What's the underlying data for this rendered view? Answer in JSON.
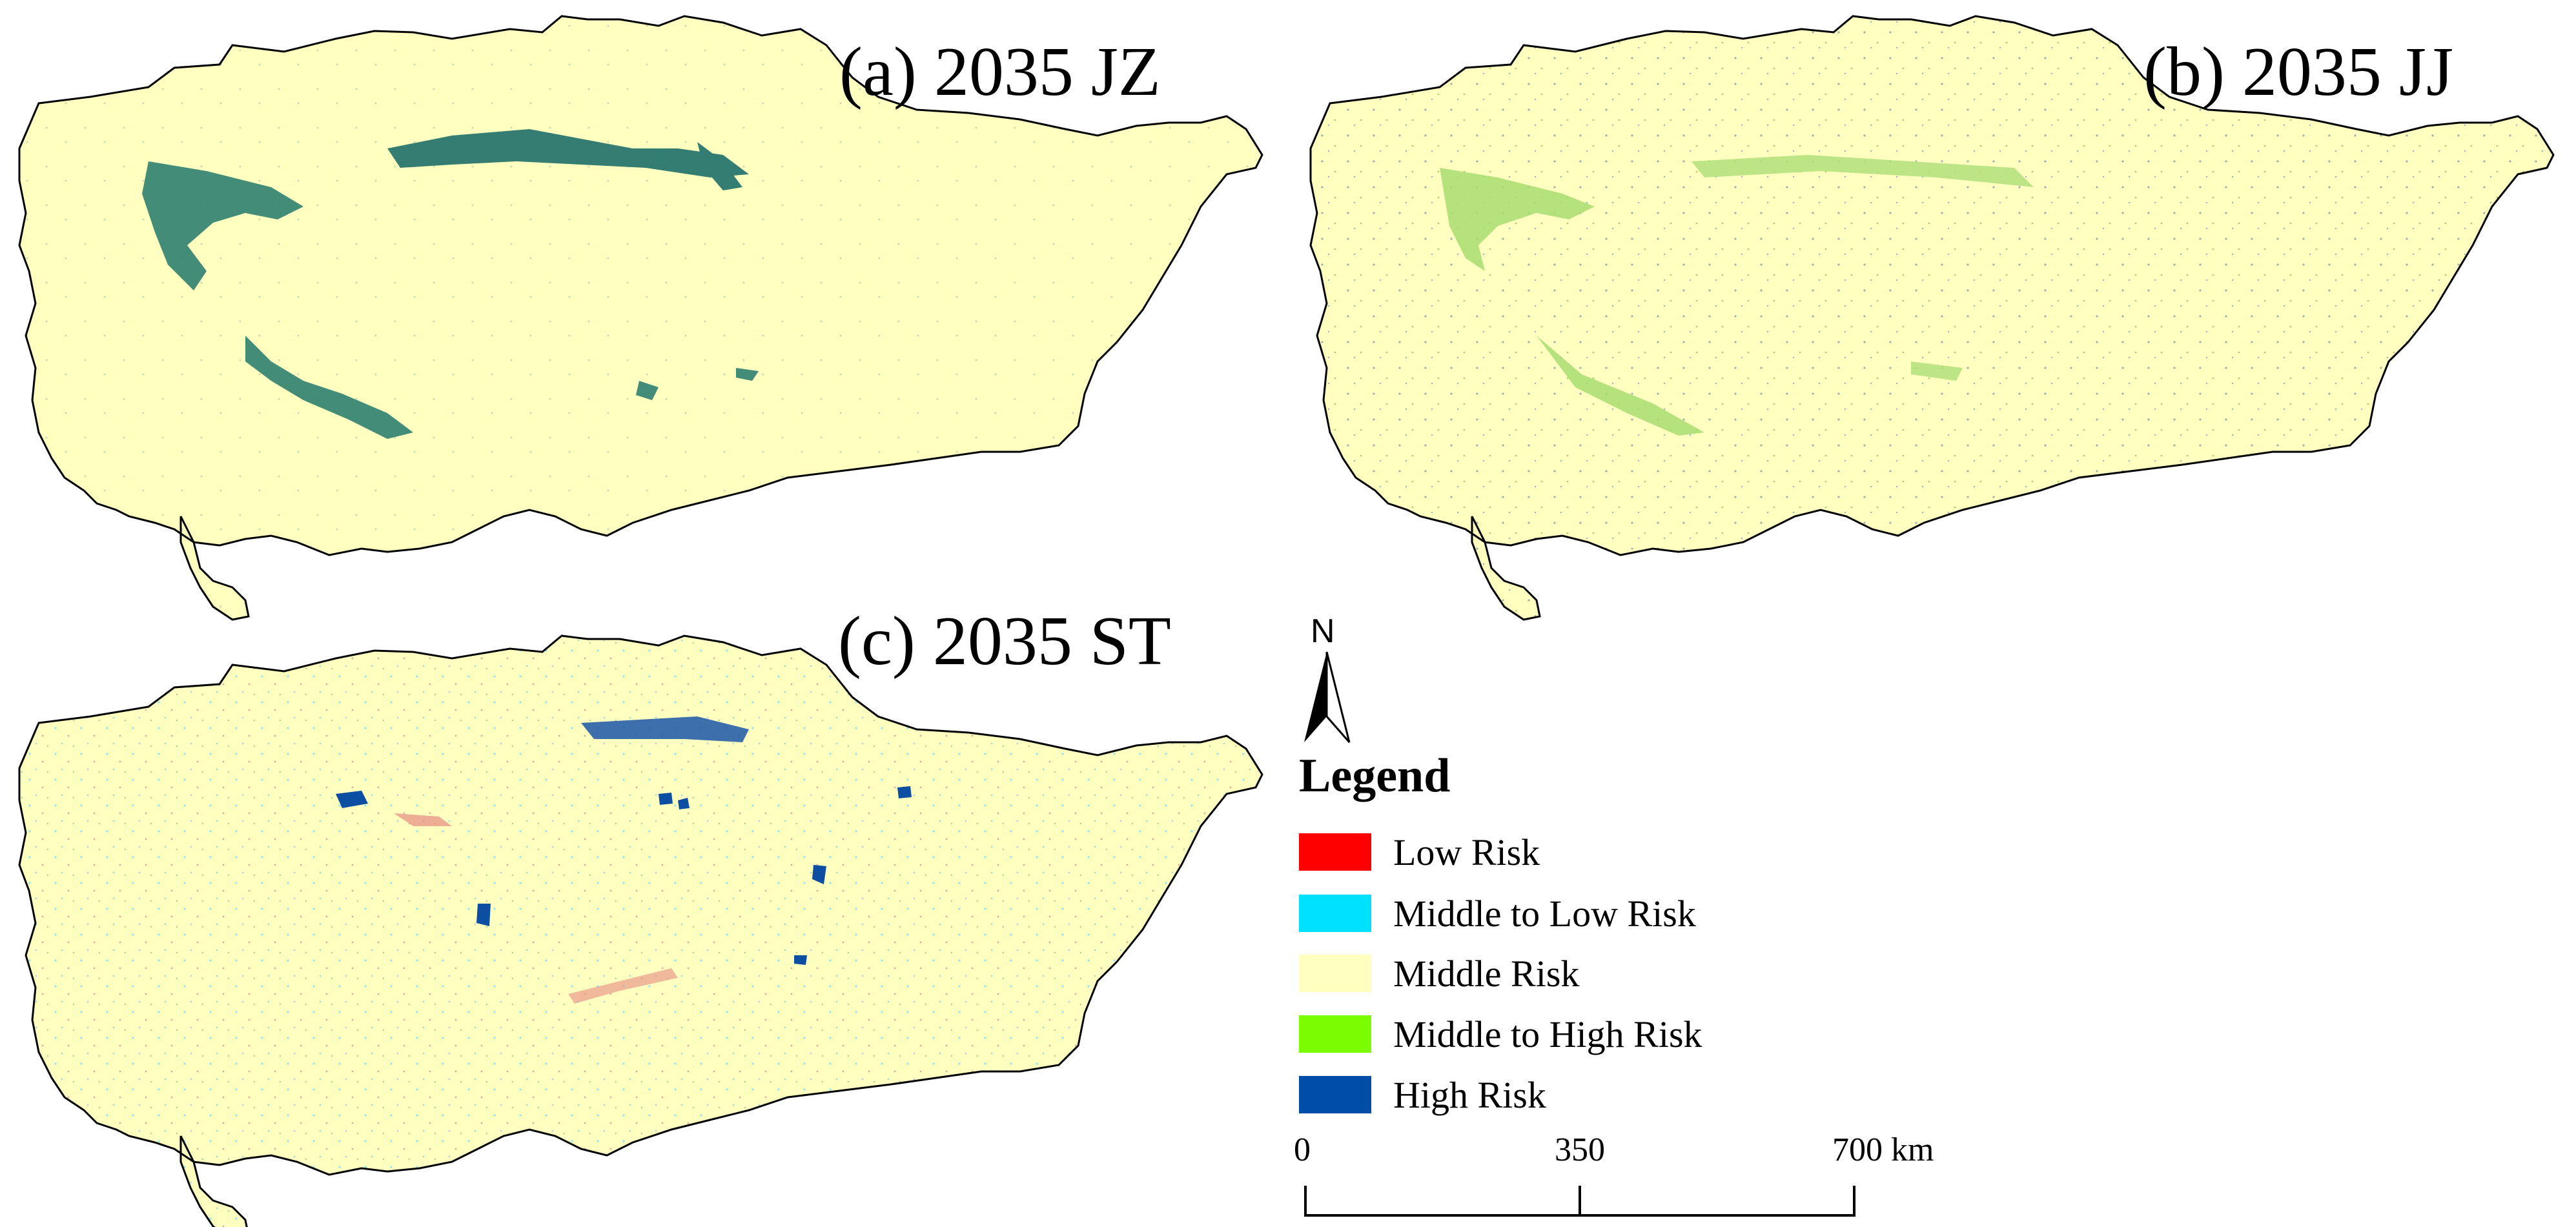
{
  "panels": [
    {
      "id": "a",
      "title": "(a) 2035 JZ"
    },
    {
      "id": "b",
      "title": "(b) 2035 JJ"
    },
    {
      "id": "c",
      "title": "(c) 2035 ST"
    }
  ],
  "north_arrow": {
    "label": "N",
    "icon": "north-arrow-icon"
  },
  "legend": {
    "title": "Legend",
    "items": [
      {
        "label": "Low Risk",
        "color": "#ff0000"
      },
      {
        "label": "Middle to Low Risk",
        "color": "#00e0ff"
      },
      {
        "label": "Middle Risk",
        "color": "#ffffc0"
      },
      {
        "label": "Middle to High Risk",
        "color": "#7cfc00"
      },
      {
        "label": "High Risk",
        "color": "#004da8"
      }
    ]
  },
  "scale_bar": {
    "ticks": [
      "0",
      "350",
      "700"
    ],
    "unit": "km"
  },
  "colors": {
    "map_fill": "#ffffc0",
    "outline": "#000000"
  }
}
